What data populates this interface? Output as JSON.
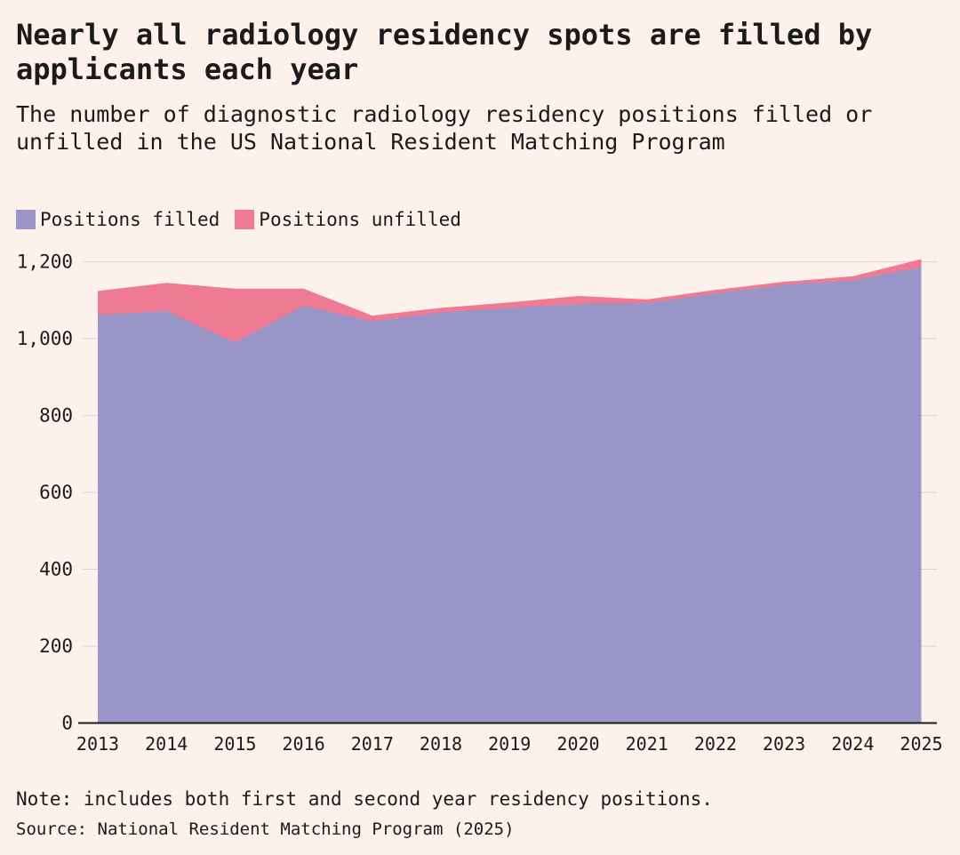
{
  "page": {
    "background": "#fdf1ec",
    "text_color": "#1b1b1b"
  },
  "header": {
    "title": "Nearly all radiology residency spots are filled by applicants each year",
    "subtitle": "The number of diagnostic radiology residency positions filled or unfilled in the US National Resident Matching Program"
  },
  "legend": {
    "items": [
      {
        "label": "Positions filled",
        "color": "#9a96c8"
      },
      {
        "label": "Positions unfilled",
        "color": "#ee7b93"
      }
    ]
  },
  "footer": {
    "note": "Note: includes both first and second year residency positions.",
    "source": "Source: National Resident Matching Program (2025)"
  },
  "chart_data": {
    "type": "area",
    "stacked": true,
    "title": "Nearly all radiology residency spots are filled by applicants each year",
    "subtitle": "The number of diagnostic radiology residency positions filled or unfilled in the US National Resident Matching Program",
    "x": [
      2013,
      2014,
      2015,
      2016,
      2017,
      2018,
      2019,
      2020,
      2021,
      2022,
      2023,
      2024,
      2025
    ],
    "series": [
      {
        "name": "Positions filled",
        "color": "#9a96c8",
        "values": [
          1062,
          1072,
          990,
          1085,
          1045,
          1068,
          1080,
          1090,
          1092,
          1118,
          1140,
          1152,
          1186
        ]
      },
      {
        "name": "Positions unfilled",
        "color": "#ee7b93",
        "values": [
          62,
          73,
          140,
          45,
          15,
          12,
          14,
          21,
          10,
          9,
          8,
          10,
          21
        ]
      }
    ],
    "ylim": [
      0,
      1200
    ],
    "yticks": [
      0,
      200,
      400,
      600,
      800,
      1000,
      1200
    ],
    "ytick_labels": [
      "0",
      "200",
      "400",
      "600",
      "800",
      "1,000",
      "1,200"
    ],
    "grid": true,
    "legend_position": "top-left",
    "gridline_color": "#dcd5d1",
    "axis_color": "#1b1b1b"
  }
}
